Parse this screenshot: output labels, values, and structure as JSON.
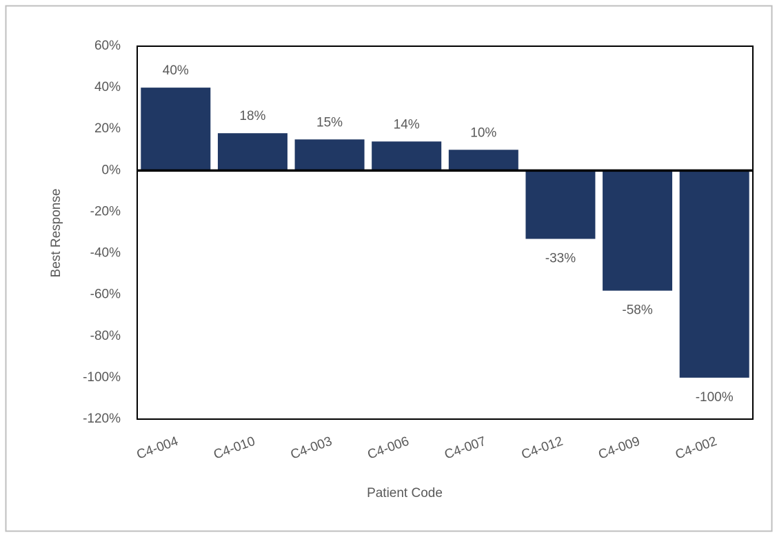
{
  "chart_data": {
    "type": "bar",
    "x_label": "Patient Code",
    "y_label": "Best Response",
    "categories": [
      "C4-004",
      "C4-010",
      "C4-003",
      "C4-006",
      "C4-007",
      "C4-012",
      "C4-009",
      "C4-002"
    ],
    "values": [
      40,
      18,
      15,
      14,
      10,
      -33,
      -58,
      -100
    ],
    "value_labels": [
      "40%",
      "18%",
      "15%",
      "14%",
      "10%",
      "-33%",
      "-58%",
      "-100%"
    ],
    "color": "#203864",
    "ylim": [
      -120,
      60
    ],
    "yticks": [
      {
        "value": 60,
        "label": "60%"
      },
      {
        "value": 40,
        "label": "40%"
      },
      {
        "value": 20,
        "label": "20%"
      },
      {
        "value": 0,
        "label": "0%"
      },
      {
        "value": -20,
        "label": "-20%"
      },
      {
        "value": -40,
        "label": "-40%"
      },
      {
        "value": -60,
        "label": "-60%"
      },
      {
        "value": -80,
        "label": "-80%"
      },
      {
        "value": -100,
        "label": "-100%"
      },
      {
        "value": -120,
        "label": "-120%"
      }
    ],
    "grid": false
  }
}
